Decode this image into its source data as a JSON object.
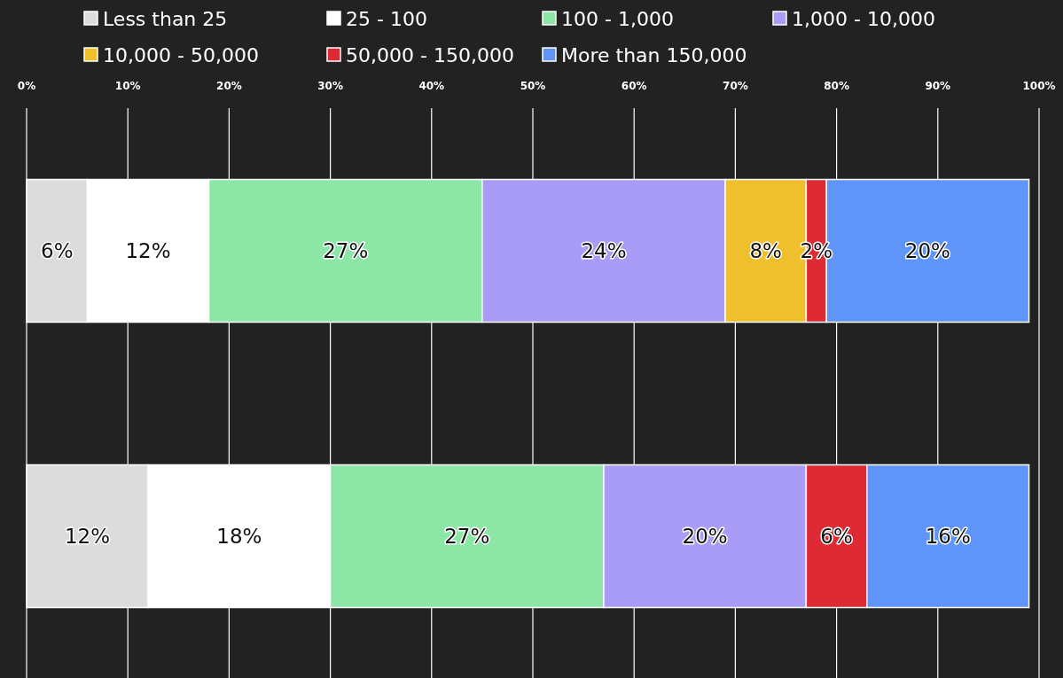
{
  "chart_data": {
    "type": "bar",
    "orientation": "horizontal",
    "stacked": true,
    "categories": [
      null,
      null
    ],
    "series": [
      {
        "name": "Less than 25",
        "color": "#dcdcdc",
        "values": [
          6,
          12
        ],
        "value_labels": [
          "6%",
          "12%"
        ]
      },
      {
        "name": "25 - 100",
        "color": "#ffffff",
        "values": [
          12,
          18
        ],
        "value_labels": [
          "12%",
          "18%"
        ]
      },
      {
        "name": "100 - 1,000",
        "color": "#8ce6a5",
        "values": [
          27,
          27
        ],
        "value_labels": [
          "27%",
          "27%"
        ]
      },
      {
        "name": "1,000 - 10,000",
        "color": "#a99cf7",
        "values": [
          24,
          20
        ],
        "value_labels": [
          "24%",
          "20%"
        ]
      },
      {
        "name": "10,000 - 50,000",
        "color": "#f0c02c",
        "values": [
          8,
          null
        ],
        "value_labels": [
          "8%",
          null
        ]
      },
      {
        "name": "50,000 - 150,000",
        "color": "#dd2a33",
        "values": [
          2,
          6
        ],
        "value_labels": [
          "2%",
          "6%"
        ]
      },
      {
        "name": "More than 150,000",
        "color": "#5f95f9",
        "values": [
          20,
          16
        ],
        "value_labels": [
          "20%",
          "16%"
        ]
      }
    ],
    "xlim": [
      0,
      100
    ],
    "xticks": [
      {
        "value": 0,
        "label": "0%"
      },
      {
        "value": 10,
        "label": "10%"
      },
      {
        "value": 20,
        "label": "20%"
      },
      {
        "value": 30,
        "label": "30%"
      },
      {
        "value": 40,
        "label": "40%"
      },
      {
        "value": 50,
        "label": "50%"
      },
      {
        "value": 60,
        "label": "60%"
      },
      {
        "value": 70,
        "label": "70%"
      },
      {
        "value": 80,
        "label": "80%"
      },
      {
        "value": 90,
        "label": "90%"
      },
      {
        "value": 100,
        "label": "100%"
      }
    ],
    "grid": "x",
    "legend": "top"
  }
}
